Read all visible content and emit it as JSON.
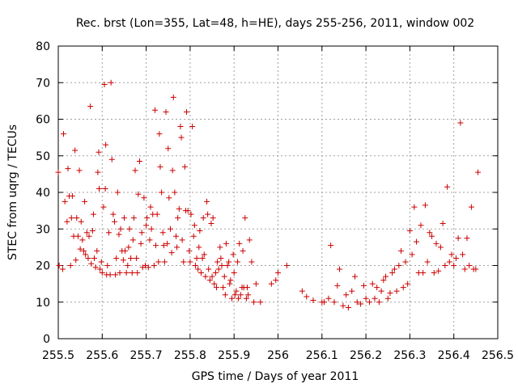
{
  "chart_data": {
    "type": "scatter",
    "title": "Rec. brst (Lon=355, Lat=48, h=HE), days 255-256, 2011, window 002",
    "xlabel": "GPS time / Days of year 2011",
    "ylabel": "STEC from uqrg / TECUs",
    "xlim": [
      255.5,
      256.5
    ],
    "ylim": [
      0,
      80
    ],
    "xticks": [
      255.5,
      255.6,
      255.7,
      255.8,
      255.9,
      256.0,
      256.1,
      256.2,
      256.3,
      256.4,
      256.5
    ],
    "xtick_labels": [
      "255.5",
      "255.6",
      "255.7",
      "255.8",
      "255.9",
      "256",
      "256.1",
      "256.2",
      "256.3",
      "256.4",
      "256.5"
    ],
    "yticks": [
      0,
      10,
      20,
      30,
      40,
      50,
      60,
      70,
      80
    ],
    "ytick_labels": [
      "0",
      "10",
      "20",
      "30",
      "40",
      "50",
      "60",
      "70",
      "80"
    ],
    "grid": true,
    "marker": "plus",
    "color": "#cc0000",
    "series": [
      {
        "name": "STEC",
        "points": [
          [
            255.5,
            45.5
          ],
          [
            255.502,
            20
          ],
          [
            255.51,
            19
          ],
          [
            255.512,
            56
          ],
          [
            255.515,
            37.5
          ],
          [
            255.52,
            32
          ],
          [
            255.522,
            46.5
          ],
          [
            255.525,
            39
          ],
          [
            255.528,
            20
          ],
          [
            255.53,
            33
          ],
          [
            255.532,
            39
          ],
          [
            255.535,
            28
          ],
          [
            255.538,
            51.5
          ],
          [
            255.54,
            21.5
          ],
          [
            255.542,
            33
          ],
          [
            255.545,
            28
          ],
          [
            255.548,
            46
          ],
          [
            255.55,
            24.5
          ],
          [
            255.552,
            32
          ],
          [
            255.555,
            27
          ],
          [
            255.558,
            24
          ],
          [
            255.56,
            37.5
          ],
          [
            255.562,
            23
          ],
          [
            255.565,
            29
          ],
          [
            255.568,
            22
          ],
          [
            255.57,
            28
          ],
          [
            255.573,
            63.5
          ],
          [
            255.575,
            20.5
          ],
          [
            255.578,
            29.5
          ],
          [
            255.58,
            34
          ],
          [
            255.582,
            22
          ],
          [
            255.585,
            19.5
          ],
          [
            255.588,
            24
          ],
          [
            255.59,
            45.5
          ],
          [
            255.592,
            51
          ],
          [
            255.593,
            41
          ],
          [
            255.595,
            19
          ],
          [
            255.598,
            21
          ],
          [
            255.6,
            18
          ],
          [
            255.603,
            36
          ],
          [
            255.605,
            69.5
          ],
          [
            255.607,
            41
          ],
          [
            255.608,
            53
          ],
          [
            255.61,
            17.5
          ],
          [
            255.612,
            20
          ],
          [
            255.615,
            29
          ],
          [
            255.618,
            17.5
          ],
          [
            255.62,
            70
          ],
          [
            255.622,
            49
          ],
          [
            255.625,
            34
          ],
          [
            255.628,
            32
          ],
          [
            255.63,
            17.5
          ],
          [
            255.632,
            22
          ],
          [
            255.635,
            40
          ],
          [
            255.638,
            28.5
          ],
          [
            255.64,
            18
          ],
          [
            255.642,
            30
          ],
          [
            255.645,
            24
          ],
          [
            255.648,
            21.5
          ],
          [
            255.65,
            33
          ],
          [
            255.652,
            24
          ],
          [
            255.655,
            18
          ],
          [
            255.658,
            20
          ],
          [
            255.66,
            25
          ],
          [
            255.662,
            30
          ],
          [
            255.665,
            22
          ],
          [
            255.668,
            18
          ],
          [
            255.67,
            27
          ],
          [
            255.672,
            33
          ],
          [
            255.675,
            46
          ],
          [
            255.678,
            22
          ],
          [
            255.68,
            18
          ],
          [
            255.682,
            39.5
          ],
          [
            255.685,
            48.5
          ],
          [
            255.688,
            26
          ],
          [
            255.69,
            29
          ],
          [
            255.692,
            19.5
          ],
          [
            255.695,
            38.5
          ],
          [
            255.698,
            20
          ],
          [
            255.7,
            31
          ],
          [
            255.702,
            33
          ],
          [
            255.705,
            19.5
          ],
          [
            255.708,
            27
          ],
          [
            255.71,
            36
          ],
          [
            255.712,
            30
          ],
          [
            255.715,
            34
          ],
          [
            255.718,
            20
          ],
          [
            255.72,
            62.5
          ],
          [
            255.722,
            25.5
          ],
          [
            255.725,
            34
          ],
          [
            255.728,
            21
          ],
          [
            255.73,
            56
          ],
          [
            255.732,
            47
          ],
          [
            255.735,
            40
          ],
          [
            255.738,
            29
          ],
          [
            255.74,
            25.5
          ],
          [
            255.742,
            21
          ],
          [
            255.745,
            62
          ],
          [
            255.748,
            26
          ],
          [
            255.75,
            52
          ],
          [
            255.752,
            38.5
          ],
          [
            255.755,
            30
          ],
          [
            255.758,
            23.5
          ],
          [
            255.76,
            46
          ],
          [
            255.762,
            66
          ],
          [
            255.765,
            40
          ],
          [
            255.768,
            28
          ],
          [
            255.77,
            25
          ],
          [
            255.772,
            33
          ],
          [
            255.775,
            35.5
          ],
          [
            255.778,
            58
          ],
          [
            255.78,
            55
          ],
          [
            255.782,
            27
          ],
          [
            255.785,
            21
          ],
          [
            255.788,
            47
          ],
          [
            255.79,
            35
          ],
          [
            255.792,
            62
          ],
          [
            255.795,
            35
          ],
          [
            255.798,
            24
          ],
          [
            255.8,
            21
          ],
          [
            255.802,
            34
          ],
          [
            255.805,
            58
          ],
          [
            255.808,
            28
          ],
          [
            255.81,
            31
          ],
          [
            255.812,
            20
          ],
          [
            255.815,
            22
          ],
          [
            255.818,
            19
          ],
          [
            255.82,
            25
          ],
          [
            255.822,
            29.5
          ],
          [
            255.825,
            18
          ],
          [
            255.828,
            22
          ],
          [
            255.83,
            33
          ],
          [
            255.832,
            23
          ],
          [
            255.835,
            17
          ],
          [
            255.838,
            37.5
          ],
          [
            255.84,
            34
          ],
          [
            255.842,
            19
          ],
          [
            255.845,
            16
          ],
          [
            255.848,
            31.5
          ],
          [
            255.85,
            17
          ],
          [
            255.852,
            33
          ],
          [
            255.855,
            15
          ],
          [
            255.858,
            18
          ],
          [
            255.86,
            14
          ],
          [
            255.862,
            21
          ],
          [
            255.865,
            19
          ],
          [
            255.868,
            25
          ],
          [
            255.87,
            22
          ],
          [
            255.872,
            20
          ],
          [
            255.875,
            14
          ],
          [
            255.878,
            17
          ],
          [
            255.88,
            12
          ],
          [
            255.882,
            26
          ],
          [
            255.885,
            20
          ],
          [
            255.888,
            21
          ],
          [
            255.89,
            15
          ],
          [
            255.892,
            16
          ],
          [
            255.895,
            11
          ],
          [
            255.898,
            23
          ],
          [
            255.9,
            18
          ],
          [
            255.902,
            12
          ],
          [
            255.905,
            13
          ],
          [
            255.908,
            21
          ],
          [
            255.91,
            11
          ],
          [
            255.912,
            26
          ],
          [
            255.915,
            12
          ],
          [
            255.918,
            14
          ],
          [
            255.92,
            24
          ],
          [
            255.922,
            14
          ],
          [
            255.925,
            33
          ],
          [
            255.928,
            11
          ],
          [
            255.93,
            14
          ],
          [
            255.932,
            12
          ],
          [
            255.935,
            27
          ],
          [
            255.94,
            21
          ],
          [
            255.945,
            10
          ],
          [
            255.95,
            15
          ],
          [
            255.96,
            10
          ],
          [
            255.985,
            15
          ],
          [
            255.995,
            16
          ],
          [
            256.0,
            18
          ],
          [
            256.02,
            20
          ],
          [
            256.055,
            13
          ],
          [
            256.065,
            11.5
          ],
          [
            256.08,
            10.5
          ],
          [
            256.1,
            10
          ],
          [
            256.105,
            10
          ],
          [
            256.115,
            11
          ],
          [
            256.12,
            25.5
          ],
          [
            256.128,
            10
          ],
          [
            256.135,
            14.5
          ],
          [
            256.14,
            19
          ],
          [
            256.148,
            9
          ],
          [
            256.155,
            12
          ],
          [
            256.16,
            8.5
          ],
          [
            256.168,
            13
          ],
          [
            256.175,
            17
          ],
          [
            256.18,
            10
          ],
          [
            256.188,
            9.5
          ],
          [
            256.195,
            14.5
          ],
          [
            256.2,
            11
          ],
          [
            256.208,
            10
          ],
          [
            256.215,
            15
          ],
          [
            256.22,
            11
          ],
          [
            256.225,
            14
          ],
          [
            256.23,
            10
          ],
          [
            256.235,
            13
          ],
          [
            256.24,
            16
          ],
          [
            256.245,
            17
          ],
          [
            256.25,
            11
          ],
          [
            256.255,
            12.5
          ],
          [
            256.26,
            18
          ],
          [
            256.265,
            19
          ],
          [
            256.27,
            13
          ],
          [
            256.275,
            20
          ],
          [
            256.28,
            24
          ],
          [
            256.285,
            14
          ],
          [
            256.29,
            21
          ],
          [
            256.295,
            15
          ],
          [
            256.3,
            29.5
          ],
          [
            256.305,
            23
          ],
          [
            256.31,
            36
          ],
          [
            256.315,
            26.5
          ],
          [
            256.32,
            18
          ],
          [
            256.325,
            31
          ],
          [
            256.33,
            18
          ],
          [
            256.335,
            36.5
          ],
          [
            256.34,
            21
          ],
          [
            256.345,
            29
          ],
          [
            256.35,
            28
          ],
          [
            256.355,
            18
          ],
          [
            256.36,
            26
          ],
          [
            256.365,
            18.5
          ],
          [
            256.37,
            25
          ],
          [
            256.375,
            31.5
          ],
          [
            256.38,
            20
          ],
          [
            256.385,
            41.5
          ],
          [
            256.39,
            21
          ],
          [
            256.395,
            23
          ],
          [
            256.4,
            20
          ],
          [
            256.405,
            22
          ],
          [
            256.41,
            27.5
          ],
          [
            256.415,
            59
          ],
          [
            256.42,
            23
          ],
          [
            256.425,
            19
          ],
          [
            256.43,
            27.5
          ],
          [
            256.435,
            20
          ],
          [
            256.44,
            36
          ],
          [
            256.445,
            19
          ],
          [
            256.45,
            19
          ],
          [
            256.455,
            45.5
          ]
        ]
      }
    ]
  }
}
